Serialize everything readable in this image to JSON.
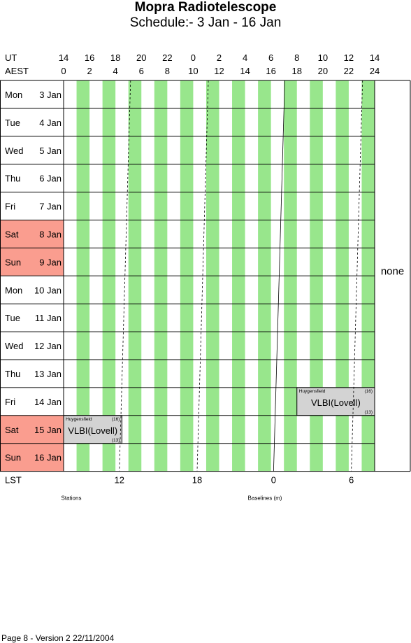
{
  "header": {
    "title": "Mopra Radiotelescope",
    "subtitle": "Schedule:- 3  Jan - 16 Jan"
  },
  "axis": {
    "ut_label": "UT",
    "aest_label": "AEST",
    "lst_label": "LST",
    "ut_ticks": [
      "14",
      "16",
      "18",
      "20",
      "22",
      "0",
      "2",
      "4",
      "6",
      "8",
      "10",
      "12",
      "14"
    ],
    "aest_ticks": [
      "0",
      "2",
      "4",
      "6",
      "8",
      "10",
      "12",
      "14",
      "16",
      "18",
      "20",
      "22",
      "24"
    ],
    "lst_ticks": [
      {
        "label": "12",
        "aest_hour": 4.3
      },
      {
        "label": "18",
        "aest_hour": 10.3
      },
      {
        "label": "0",
        "aest_hour": 16.2
      },
      {
        "label": "6",
        "aest_hour": 22.2
      }
    ]
  },
  "days": [
    {
      "dow": "Mon",
      "date": "3  Jan",
      "weekend": false
    },
    {
      "dow": "Tue",
      "date": "4  Jan",
      "weekend": false
    },
    {
      "dow": "Wed",
      "date": "5  Jan",
      "weekend": false
    },
    {
      "dow": "Thu",
      "date": "6  Jan",
      "weekend": false
    },
    {
      "dow": "Fri",
      "date": "7  Jan",
      "weekend": false
    },
    {
      "dow": "Sat",
      "date": "8  Jan",
      "weekend": true
    },
    {
      "dow": "Sun",
      "date": "9  Jan",
      "weekend": true
    },
    {
      "dow": "Mon",
      "date": "10 Jan",
      "weekend": false
    },
    {
      "dow": "Tue",
      "date": "11 Jan",
      "weekend": false
    },
    {
      "dow": "Wed",
      "date": "12 Jan",
      "weekend": false
    },
    {
      "dow": "Thu",
      "date": "13 Jan",
      "weekend": false
    },
    {
      "dow": "Fri",
      "date": "14 Jan",
      "weekend": false
    },
    {
      "dow": "Sat",
      "date": "15 Jan",
      "weekend": true
    },
    {
      "dow": "Sun",
      "date": "16 Jan",
      "weekend": true
    }
  ],
  "observations": [
    {
      "row": 11,
      "start_hour": 18,
      "end_hour": 24,
      "project": "VLBI(Lovell)",
      "observer": "Huygensfield",
      "code_top": "(16)",
      "code_bottom": "(13)"
    },
    {
      "row": 12,
      "start_hour": 0,
      "end_hour": 4.5,
      "project": "VLBI(Lovell)",
      "observer": "Huygensfield",
      "code_top": "(16)",
      "code_bottom": "(13)"
    }
  ],
  "side_note": "none",
  "labels": {
    "stations": "Stations",
    "baselines": "Baselines (m)"
  },
  "footer": "Page 8 - Version 2  22/11/2004",
  "colors": {
    "green_band": "#98e68c",
    "weekend": "#fa9d8f",
    "observation": "#d3d3d3"
  }
}
